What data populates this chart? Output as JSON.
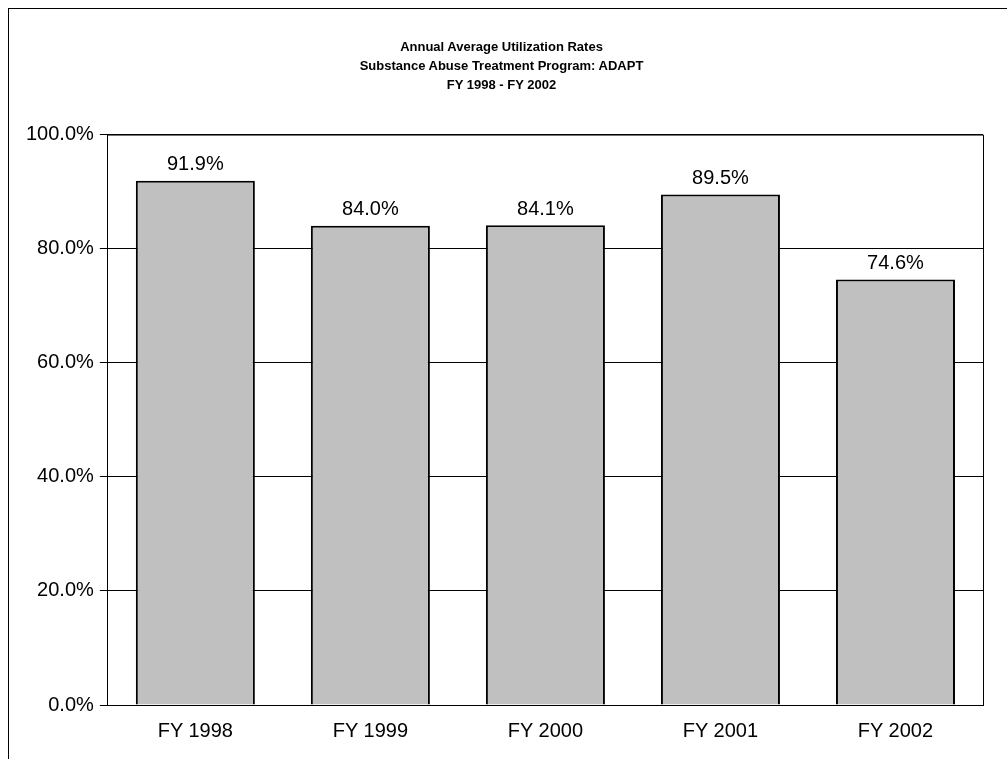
{
  "chart_data": {
    "type": "bar",
    "title": "Annual Average Utilization Rates\nSubstance Abuse Treatment Program: ADAPT\nFY 1998 - FY 2002",
    "categories": [
      "FY 1998",
      "FY 1999",
      "FY 2000",
      "FY 2001",
      "FY 2002"
    ],
    "values": [
      91.9,
      84.0,
      84.1,
      89.5,
      74.6
    ],
    "color": "#c0c0c0",
    "value_labels": [
      "91.9%",
      "84.0%",
      "84.1%",
      "89.5%",
      "74.6%"
    ],
    "ylim": [
      0,
      100
    ],
    "yticks": [
      {
        "value": 0,
        "label": "0.0%"
      },
      {
        "value": 20,
        "label": "20.0%"
      },
      {
        "value": 40,
        "label": "40.0%"
      },
      {
        "value": 60,
        "label": "60.0%"
      },
      {
        "value": 80,
        "label": "80.0%"
      },
      {
        "value": 100,
        "label": "100.0%"
      }
    ],
    "grid": "y",
    "legend": false
  }
}
